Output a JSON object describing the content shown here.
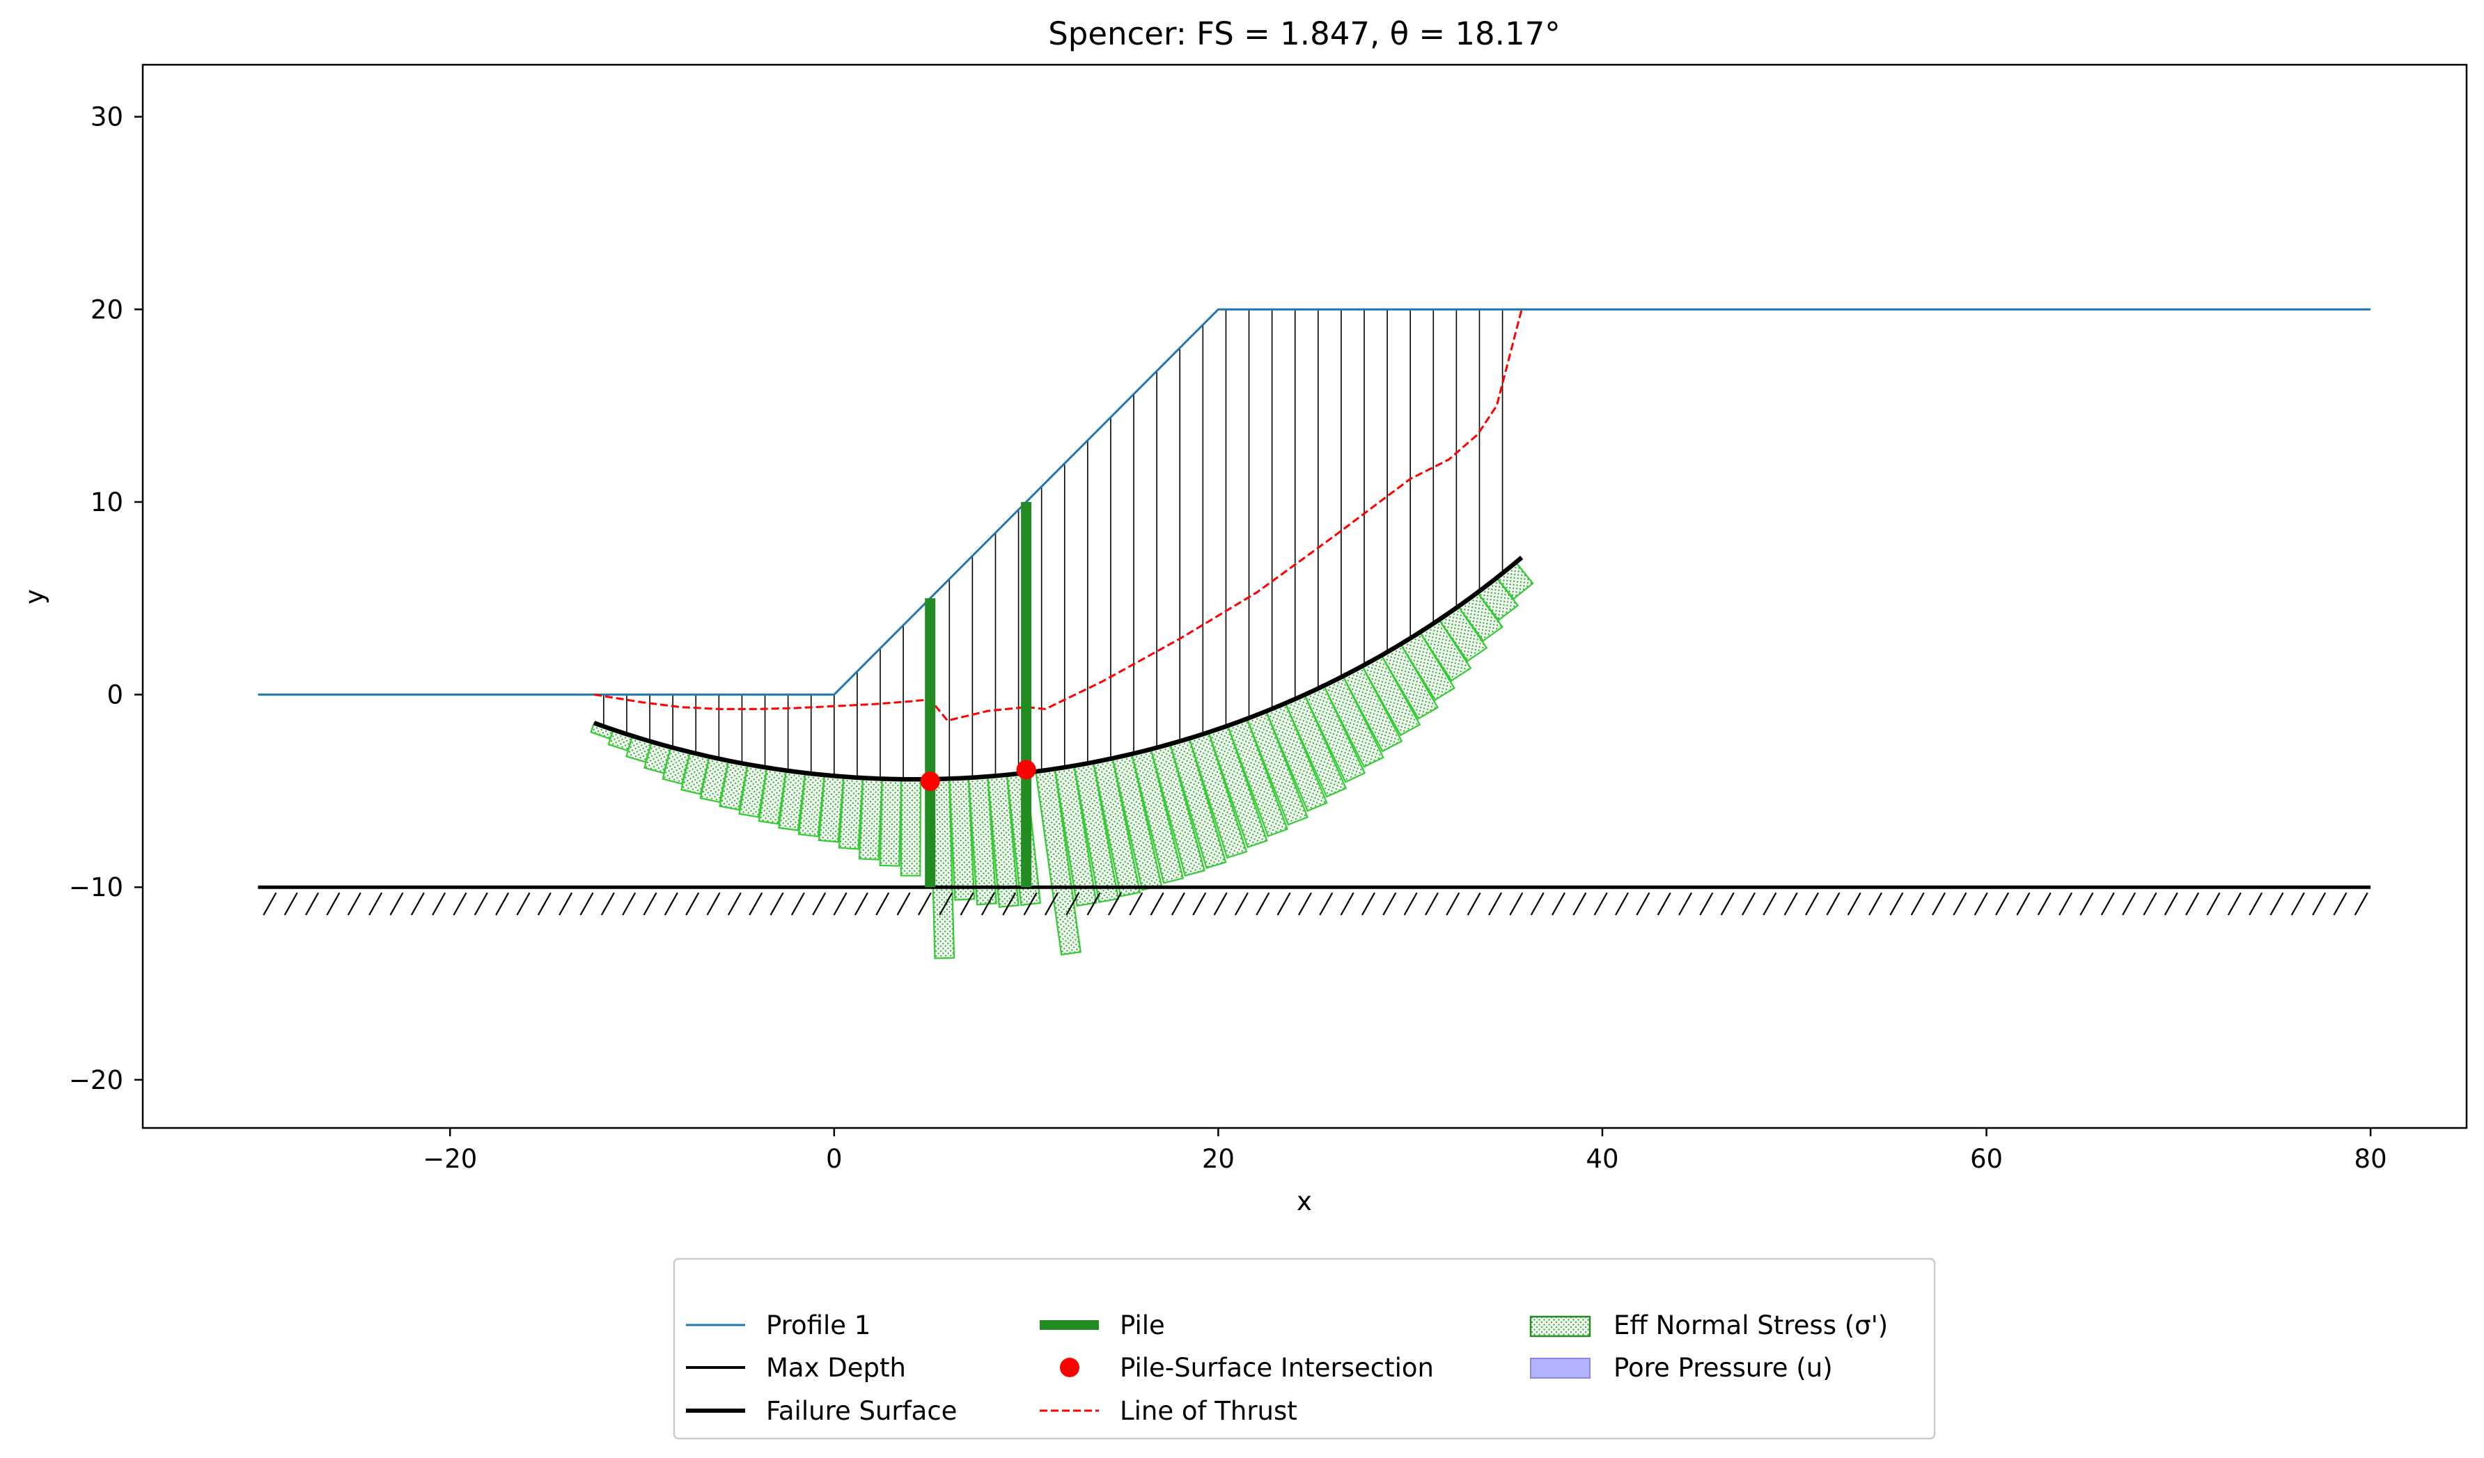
{
  "chart_data": {
    "type": "line",
    "title": "Spencer: FS = 1.847, θ = 18.17°",
    "xlabel": "x",
    "ylabel": "y",
    "xlim": [
      -36,
      85
    ],
    "ylim": [
      -22.5,
      32.7
    ],
    "xticks": [
      -20,
      0,
      20,
      40,
      60,
      80
    ],
    "yticks": [
      -20,
      -10,
      0,
      10,
      20,
      30
    ],
    "xtick_labels": [
      "−20",
      "0",
      "20",
      "40",
      "60",
      "80"
    ],
    "ytick_labels": [
      "−20",
      "−10",
      "0",
      "10",
      "20",
      "30"
    ],
    "grid": false,
    "legend_position": "bottom-center",
    "colors": {
      "profile": "#1f77b4",
      "max_depth": "#000000",
      "failure_surface": "#000000",
      "pile": "#228b22",
      "intersection": "#ff0000",
      "thrust": "#ff0000",
      "eff_stress_edge": "#33cc33",
      "eff_stress_fill": "#e8f8e8",
      "pore_pressure": "#aaaaff"
    },
    "profile": {
      "name": "Profile 1",
      "x": [
        -30,
        0,
        20,
        80
      ],
      "y": [
        0,
        0,
        20,
        20
      ]
    },
    "max_depth": {
      "name": "Max Depth",
      "y": -10,
      "x": [
        -30,
        80
      ]
    },
    "failure_surface": {
      "name": "Failure Surface",
      "center": [
        4.2,
        44.7
      ],
      "radius": 49.1,
      "x_start": -12.5,
      "x_end": 35.8
    },
    "piles": {
      "name": "Pile",
      "items": [
        {
          "x": 5,
          "y_top": 5,
          "y_bottom": -10
        },
        {
          "x": 10,
          "y_top": 10,
          "y_bottom": -10
        }
      ]
    },
    "pile_intersections": {
      "name": "Pile-Surface Intersection",
      "x": [
        5,
        10
      ],
      "y": [
        -4.5,
        -3.9
      ]
    },
    "line_of_thrust": {
      "name": "Line of Thrust",
      "x": [
        -12.5,
        -10,
        -8,
        -6,
        -4,
        -2,
        0,
        2,
        4,
        5,
        5.9,
        8,
        10,
        11,
        14,
        18,
        22,
        26,
        30,
        32,
        33.5,
        34.5,
        35.8
      ],
      "y": [
        0,
        -0.4,
        -0.65,
        -0.75,
        -0.75,
        -0.7,
        -0.6,
        -0.5,
        -0.35,
        -0.25,
        -1.35,
        -0.85,
        -0.65,
        -0.75,
        0.7,
        2.9,
        5.3,
        8.2,
        11.2,
        12.2,
        13.5,
        15,
        20
      ]
    },
    "eff_normal_stress": {
      "name": "Eff Normal Stress (σ')",
      "slice_width": 1.0,
      "slices_x": [
        -12,
        -11,
        -10,
        -9,
        -8,
        -7,
        -6,
        -5,
        -4,
        -3,
        -2,
        -1,
        0,
        1,
        2,
        3,
        4,
        5.5,
        6.5,
        7.5,
        8.5,
        9.5,
        11,
        12,
        13,
        14,
        15,
        16,
        17,
        18,
        19,
        20,
        21,
        22,
        23,
        24,
        25,
        26,
        27,
        28,
        29,
        30,
        31,
        32,
        33,
        34,
        35
      ],
      "stress_depth": [
        0.5,
        0.8,
        1.1,
        1.4,
        1.7,
        2.0,
        2.2,
        2.4,
        2.6,
        2.8,
        3.0,
        3.2,
        3.4,
        3.7,
        4.2,
        4.5,
        5.0,
        9.3,
        6.3,
        6.6,
        6.8,
        6.8,
        9.6,
        7.2,
        7.2,
        7.1,
        7.0,
        6.9,
        6.8,
        6.7,
        6.5,
        6.3,
        6.1,
        5.9,
        5.6,
        5.3,
        5.0,
        4.7,
        4.4,
        4.1,
        3.8,
        3.4,
        3.0,
        2.6,
        2.2,
        1.8,
        1.4
      ]
    },
    "pore_pressure": {
      "name": "Pore Pressure (u)",
      "values": []
    },
    "slice_lines": {
      "x_start": -12,
      "x_end": 35,
      "step": 1.2
    }
  },
  "legend": {
    "items": [
      {
        "label": "Profile 1"
      },
      {
        "label": "Max Depth"
      },
      {
        "label": "Failure Surface"
      },
      {
        "label": "Pile"
      },
      {
        "label": "Pile-Surface Intersection"
      },
      {
        "label": "Line of Thrust"
      },
      {
        "label": "Eff Normal Stress (σ')"
      },
      {
        "label": "Pore Pressure (u)"
      }
    ]
  }
}
